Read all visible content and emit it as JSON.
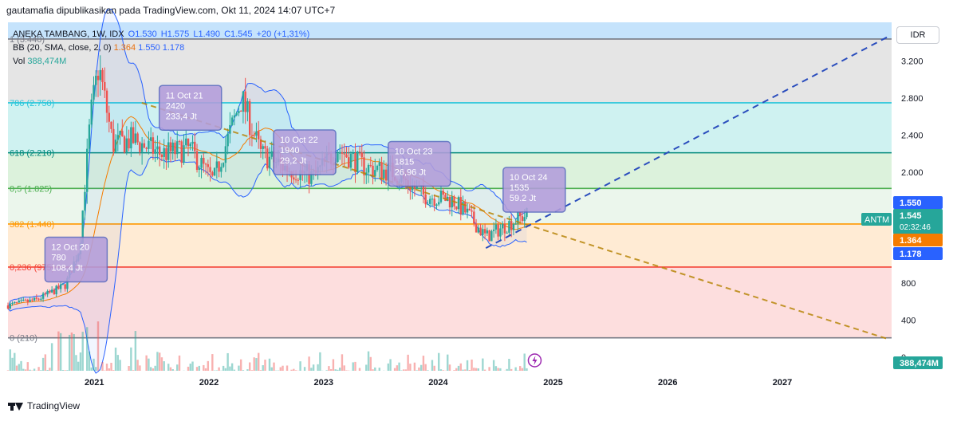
{
  "header": {
    "publisher_line": "gautamafia dipublikasikan pada TradingView.com, Okt 11, 2024 14:07 UTC+7"
  },
  "legend": {
    "symbol_line": "ANEKA TAMBANG, 1W, IDX",
    "open": "O1.530",
    "high": "H1.575",
    "low": "L1.490",
    "close": "C1.545",
    "change": "+20 (+1,31%)",
    "bb_label": "BB (20, SMA, close, 2, 0)",
    "bb_mid": "1.364",
    "bb_up": "1.550",
    "bb_lo": "1.178",
    "vol_label": "Vol",
    "vol_value": "388,474M"
  },
  "currency": "IDR",
  "footer": {
    "brand": "TradingView"
  },
  "colors": {
    "candle_up": "#26a69a",
    "candle_down": "#ef5350",
    "bb_mid": "#f57c00",
    "bb_band": "#2962ff",
    "trend_dashed": "#b8860b",
    "projection": "#2a4dbd",
    "callout_fill": "#b39ddb",
    "callout_border": "#5c6bc0"
  },
  "chart_data": {
    "type": "candlestick",
    "title": "ANEKA TAMBANG, 1W, IDX",
    "ylabel": "IDR",
    "ylim": [
      -120,
      3620
    ],
    "y_ticks": [
      0,
      400,
      800,
      1200,
      1600,
      2000,
      2400,
      2800,
      3200
    ],
    "y_tick_labels": [
      "0",
      "400",
      "800",
      "",
      "",
      "2.000",
      "2.400",
      "2.800",
      "3.200"
    ],
    "x_ticks": [
      "2021",
      "2022",
      "2023",
      "2024",
      "2025",
      "2026",
      "2027"
    ],
    "x_tick_dates": [
      "2021-01-01",
      "2022-01-01",
      "2023-01-01",
      "2024-01-01",
      "2025-01-01",
      "2026-01-01",
      "2027-01-01"
    ],
    "fib_levels": [
      {
        "label": "1 (3.440)",
        "price": 3440,
        "color": "#787b86",
        "fill": "#bbdefb"
      },
      {
        "label": "786 (2.750)",
        "price": 2750,
        "color": "#26c6da",
        "fill": "#e0e0e0"
      },
      {
        "label": "618 (2.210)",
        "price": 2210,
        "color": "#00897b",
        "fill": "#c7f0ee"
      },
      {
        "label": "0,5 (1.825)",
        "price": 1825,
        "color": "#4caf50",
        "fill": "#d6f0d6"
      },
      {
        "label": "382 (1.440)",
        "price": 1440,
        "color": "#ff9800",
        "fill": "#e8f5e9"
      },
      {
        "label": "0,236 (975)",
        "price": 975,
        "color": "#f44336",
        "fill": "#ffe8cc"
      },
      {
        "label": "0 (210)",
        "price": 210,
        "color": "#787b86",
        "fill": "#fdd8d8"
      }
    ],
    "price_labels": [
      {
        "label": "ANTM",
        "value": "1.545",
        "sub": "02:32:46",
        "color": "#26a69a"
      },
      {
        "value": "1.550",
        "color": "#2962ff"
      },
      {
        "value": "1.364",
        "color": "#f57c00"
      },
      {
        "value": "1.178",
        "color": "#2962ff"
      },
      {
        "value": "388,474M",
        "color": "#26a69a"
      }
    ],
    "annotations": [
      {
        "lines": [
          "12 Oct 20",
          "780",
          "108,4 Jt"
        ],
        "date": "2020-10-12",
        "price": 780
      },
      {
        "lines": [
          "11 Oct 21",
          "2420",
          "233,4 Jt"
        ],
        "date": "2021-10-11",
        "price": 2420
      },
      {
        "lines": [
          "10 Oct 22",
          "1940",
          "29,2 Jt"
        ],
        "date": "2022-10-10",
        "price": 1940
      },
      {
        "lines": [
          "10 Oct 23",
          "1815",
          "26,96 Jt"
        ],
        "date": "2023-10-10",
        "price": 1815
      },
      {
        "lines": [
          "10 Oct 24",
          "1535",
          "59.2 Jt"
        ],
        "date": "2024-10-10",
        "price": 1535
      }
    ],
    "series": [
      {
        "name": "price_anchor_dates",
        "dates": [
          "2020-04-01",
          "2020-07-01",
          "2020-10-01",
          "2020-11-15",
          "2020-12-20",
          "2021-01-15",
          "2021-03-01",
          "2021-05-01",
          "2021-08-01",
          "2021-11-01",
          "2022-01-15",
          "2022-04-15",
          "2022-06-15",
          "2022-09-01",
          "2022-12-01",
          "2023-02-15",
          "2023-05-15",
          "2023-08-15",
          "2023-11-15",
          "2024-02-15",
          "2024-04-01",
          "2024-06-01",
          "2024-08-01",
          "2024-10-10"
        ],
        "values": [
          560,
          620,
          780,
          1180,
          2600,
          3150,
          2300,
          2350,
          2200,
          2250,
          1900,
          2800,
          2200,
          2050,
          1950,
          2250,
          2050,
          2000,
          1750,
          1700,
          1560,
          1300,
          1420,
          1545
        ]
      },
      {
        "name": "trend_line_down",
        "points": [
          [
            "2021-06-01",
            2750
          ],
          [
            "2027-12-01",
            200
          ]
        ]
      },
      {
        "name": "trend_line_up_projection",
        "points": [
          [
            "2024-06-01",
            1180
          ],
          [
            "2027-12-01",
            3460
          ]
        ]
      }
    ]
  }
}
